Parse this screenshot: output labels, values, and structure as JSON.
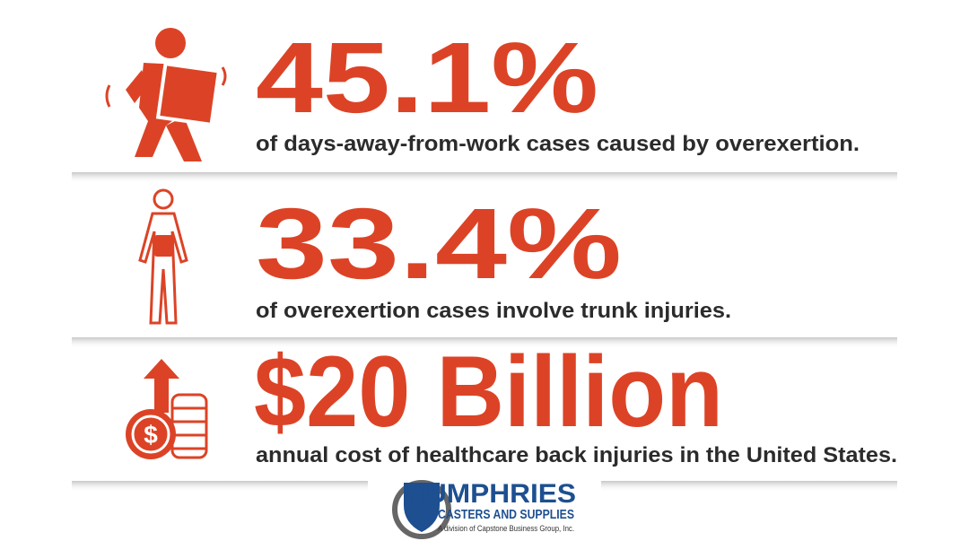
{
  "stats": [
    {
      "value": "45.1%",
      "description": "of days-away-from-work cases caused by overexertion."
    },
    {
      "value": "33.4%",
      "description": "of overexertion cases involve trunk injuries."
    },
    {
      "value": "$20 Billion",
      "description": "annual cost of healthcare back injuries in the United States."
    }
  ],
  "logo": {
    "name": "HUMPHRIES",
    "tagline": "CASTERS AND SUPPLIES",
    "division": "A division of Capstone Business Group, Inc."
  }
}
